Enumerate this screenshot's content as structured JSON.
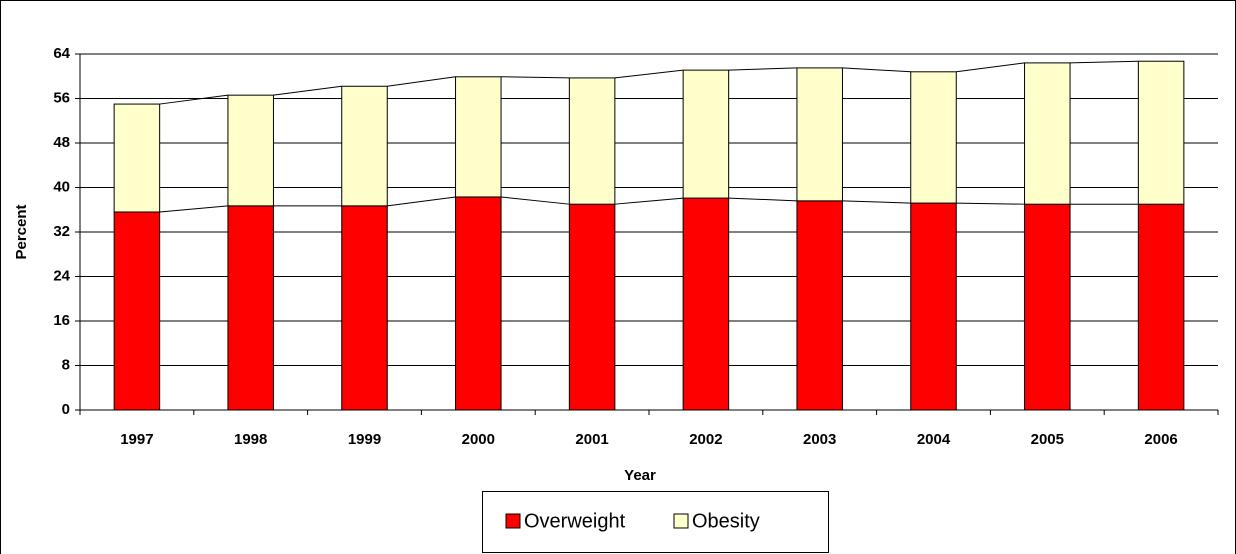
{
  "chart_data": {
    "type": "stacked_bar",
    "x_label": "Year",
    "y_label": "Percent",
    "categories": [
      "1997",
      "1998",
      "1999",
      "2000",
      "2001",
      "2002",
      "2003",
      "2004",
      "2005",
      "2006"
    ],
    "series": [
      {
        "name": "Overweight",
        "color": "#ff0000",
        "values": [
          35.6,
          36.7,
          36.7,
          38.3,
          37.0,
          38.1,
          37.6,
          37.2,
          37.0,
          37.0
        ]
      },
      {
        "name": "Obesity",
        "color": "#ffffcc",
        "values": [
          19.4,
          19.9,
          21.5,
          21.6,
          22.7,
          23.0,
          23.9,
          23.6,
          25.4,
          25.7
        ]
      }
    ],
    "ylim": [
      0,
      64
    ],
    "yticks": [
      0,
      8,
      16,
      24,
      32,
      40,
      48,
      56,
      64
    ],
    "grid": true,
    "legend": "bottom"
  }
}
